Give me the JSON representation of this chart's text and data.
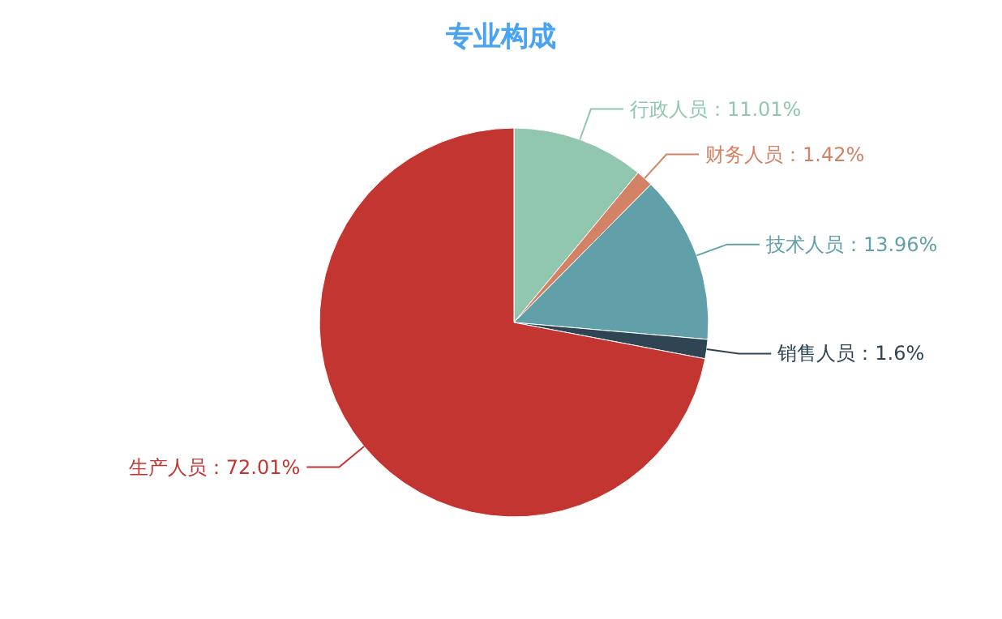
{
  "chart_data": {
    "type": "pie",
    "title": "专业构成",
    "categories": [
      "行政人员",
      "财务人员",
      "技术人员",
      "销售人员",
      "生产人员"
    ],
    "values": [
      11.01,
      1.42,
      13.96,
      1.6,
      72.01
    ],
    "value_labels": [
      "：11.01%",
      "：1.42%",
      "：13.96%",
      "：1.6%",
      "：72.01%"
    ],
    "colors": [
      "#91c7ae",
      "#d48265",
      "#61a0a8",
      "#2f4554",
      "#c23531"
    ]
  }
}
